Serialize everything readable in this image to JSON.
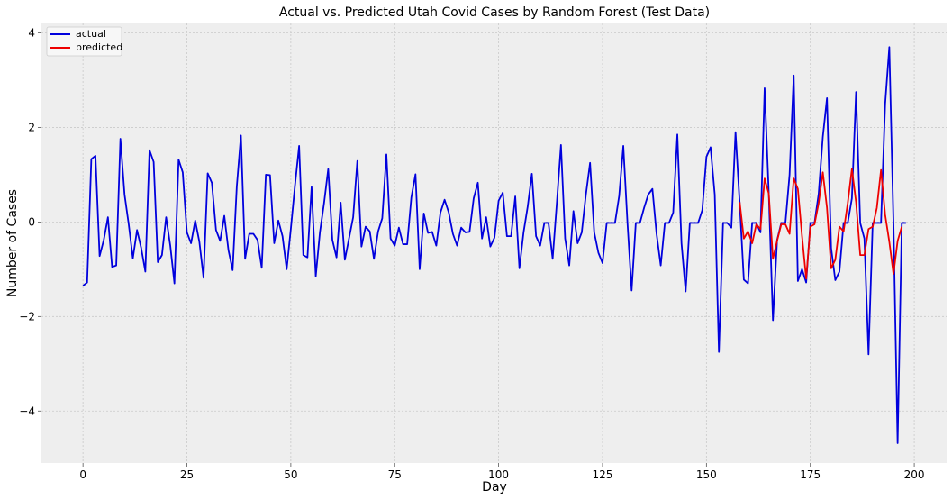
{
  "chart_data": {
    "type": "line",
    "title": "Actual vs. Predicted Utah Covid Cases by Random Forest (Test Data)",
    "xlabel": "Day",
    "ylabel": "Number of Cases",
    "xlim": [
      -10,
      208
    ],
    "ylim": [
      -5.1,
      4.2
    ],
    "xticks": [
      0,
      25,
      50,
      75,
      100,
      125,
      150,
      175,
      200
    ],
    "yticks": [
      -4,
      -2,
      0,
      2,
      4
    ],
    "grid": true,
    "legend_position": "top-left",
    "background": "#eeeeee",
    "series": [
      {
        "name": "actual",
        "color": "#0000dd",
        "x_start": 0,
        "values": [
          -1.35,
          -1.28,
          1.33,
          1.4,
          -0.72,
          -0.38,
          0.1,
          -0.95,
          -0.92,
          1.76,
          0.58,
          -0.05,
          -0.77,
          -0.17,
          -0.55,
          -1.05,
          1.52,
          1.27,
          -0.85,
          -0.7,
          0.1,
          -0.5,
          -1.3,
          1.32,
          1.05,
          -0.22,
          -0.45,
          0.03,
          -0.42,
          -1.18,
          1.03,
          0.83,
          -0.17,
          -0.4,
          0.13,
          -0.6,
          -1.02,
          0.75,
          1.83,
          -0.78,
          -0.25,
          -0.25,
          -0.38,
          -0.97,
          1.0,
          0.99,
          -0.45,
          0.03,
          -0.3,
          -1.0,
          -0.15,
          0.77,
          1.61,
          -0.7,
          -0.75,
          0.74,
          -1.15,
          -0.22,
          0.4,
          1.12,
          -0.38,
          -0.75,
          0.41,
          -0.8,
          -0.35,
          0.1,
          1.29,
          -0.52,
          -0.1,
          -0.2,
          -0.78,
          -0.2,
          0.08,
          1.43,
          -0.35,
          -0.5,
          -0.12,
          -0.47,
          -0.47,
          0.52,
          1.01,
          -1.0,
          0.18,
          -0.23,
          -0.21,
          -0.5,
          0.2,
          0.47,
          0.2,
          -0.25,
          -0.5,
          -0.12,
          -0.22,
          -0.21,
          0.5,
          0.83,
          -0.35,
          0.1,
          -0.52,
          -0.33,
          0.45,
          0.62,
          -0.3,
          -0.3,
          0.54,
          -0.98,
          -0.22,
          0.33,
          1.02,
          -0.3,
          -0.5,
          -0.02,
          -0.02,
          -0.78,
          0.4,
          1.63,
          -0.35,
          -0.92,
          0.23,
          -0.45,
          -0.22,
          0.58,
          1.25,
          -0.22,
          -0.65,
          -0.87,
          -0.02,
          -0.02,
          -0.02,
          0.55,
          1.61,
          -0.02,
          -1.45,
          -0.02,
          -0.02,
          0.3,
          0.58,
          0.7,
          -0.25,
          -0.92,
          -0.02,
          -0.02,
          0.2,
          1.85,
          -0.45,
          -1.47,
          -0.02,
          -0.02,
          -0.02,
          0.25,
          1.38,
          1.58,
          0.58,
          -2.75,
          -0.02,
          -0.02,
          -0.12,
          1.9,
          0.4,
          -1.22,
          -1.3,
          -0.02,
          -0.02,
          -0.22,
          2.83,
          0.6,
          -2.08,
          -0.38,
          -0.02,
          -0.02,
          1.0,
          3.1,
          -1.25,
          -1.0,
          -1.28,
          -0.02,
          -0.02,
          0.6,
          1.8,
          2.62,
          -0.55,
          -1.23,
          -1.05,
          -0.02,
          -0.02,
          0.5,
          2.75,
          -0.02,
          -0.35,
          -2.8,
          -0.02,
          -0.02,
          -0.02,
          2.5,
          3.7,
          -0.02,
          -4.68,
          -0.02,
          -0.02
        ]
      },
      {
        "name": "predicted",
        "color": "#ee0000",
        "x_start": 158,
        "values": [
          0.42,
          -0.35,
          -0.2,
          -0.45,
          -0.05,
          -0.15,
          0.92,
          0.6,
          -0.78,
          -0.4,
          -0.05,
          -0.05,
          -0.25,
          0.92,
          0.7,
          -0.3,
          -1.2,
          -0.1,
          -0.05,
          0.4,
          1.05,
          0.3,
          -0.98,
          -0.8,
          -0.1,
          -0.2,
          0.4,
          1.12,
          0.42,
          -0.7,
          -0.7,
          -0.15,
          -0.1,
          0.3,
          1.1,
          0.15,
          -0.42,
          -1.1,
          -0.4,
          -0.1
        ]
      }
    ]
  }
}
